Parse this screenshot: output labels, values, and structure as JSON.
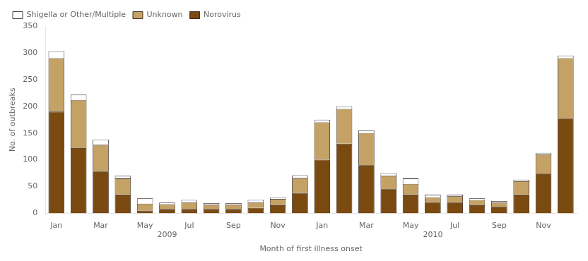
{
  "chart_data": {
    "type": "bar",
    "stacked": true,
    "categories": [
      "Jan",
      null,
      "Mar",
      null,
      "May",
      null,
      "Jul",
      null,
      "Sep",
      null,
      "Nov",
      null,
      "Jan",
      null,
      "Mar",
      null,
      "May",
      null,
      "Jul",
      null,
      "Sep",
      null,
      "Nov",
      null
    ],
    "series": [
      {
        "name": "Norovirus",
        "color": "#7B4A10",
        "values": [
          190,
          122,
          78,
          35,
          5,
          8,
          8,
          8,
          8,
          10,
          15,
          38,
          100,
          130,
          90,
          45,
          35,
          20,
          20,
          15,
          12,
          35,
          75,
          178
        ]
      },
      {
        "name": "Unknown",
        "color": "#C4A265",
        "values": [
          100,
          90,
          50,
          30,
          13,
          9,
          12,
          8,
          8,
          10,
          12,
          28,
          70,
          65,
          60,
          25,
          20,
          10,
          12,
          10,
          8,
          25,
          35,
          112
        ]
      },
      {
        "name": "Shigella or Other/Multiple",
        "color": "#FFFFFF",
        "values": [
          13,
          10,
          10,
          5,
          10,
          3,
          5,
          3,
          3,
          5,
          3,
          5,
          5,
          5,
          5,
          5,
          10,
          5,
          3,
          3,
          3,
          3,
          3,
          5
        ]
      }
    ],
    "ylabel": "No. of outbreaks",
    "xlabel": "Month of first illness onset",
    "annotations": [
      "2009",
      "2010"
    ],
    "ylim": [
      0,
      350
    ],
    "yticks": [
      0,
      50,
      100,
      150,
      200,
      250,
      300,
      350
    ],
    "grid": false,
    "legend": "upper left"
  }
}
